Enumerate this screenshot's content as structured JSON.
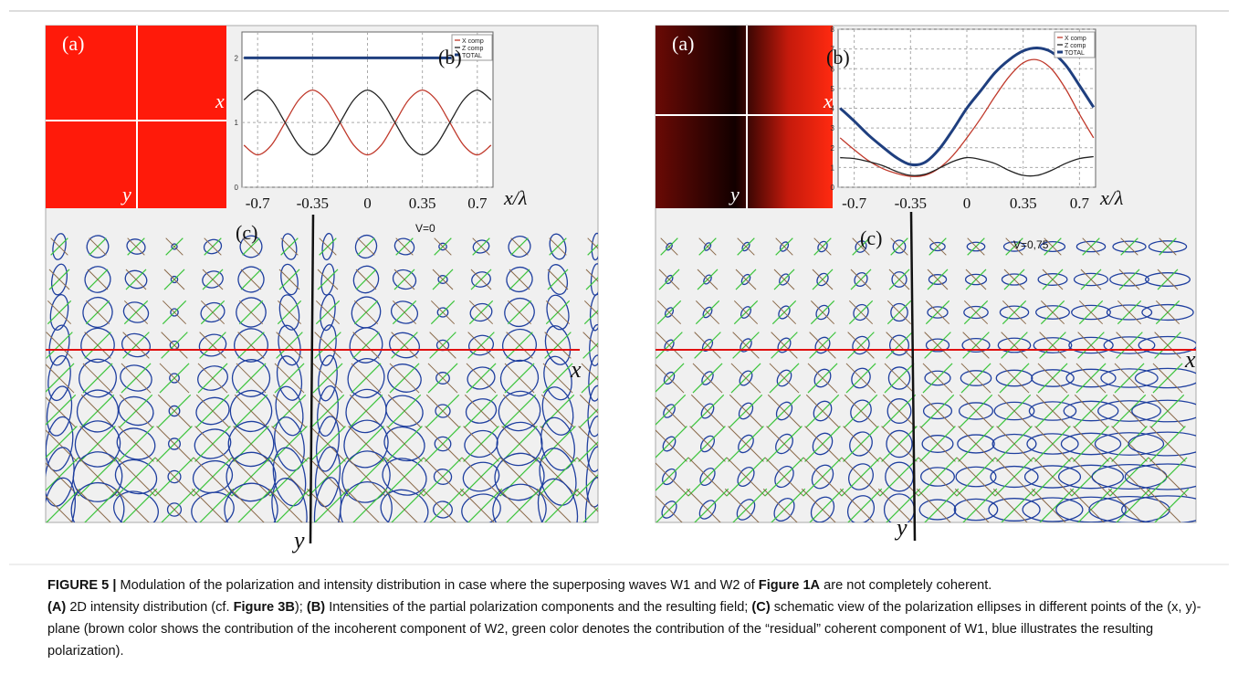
{
  "chart_data": [
    {
      "type": "line",
      "x": [
        -0.7875,
        -0.7,
        -0.6125,
        -0.525,
        -0.4375,
        -0.35,
        -0.2625,
        -0.175,
        -0.0875,
        0,
        0.0875,
        0.175,
        0.2625,
        0.35,
        0.4375,
        0.525,
        0.6125,
        0.7,
        0.7875
      ],
      "series": [
        {
          "name": "X comp",
          "color": "#c0392b",
          "values": [
            0.65,
            0.5,
            0.65,
            1,
            1.35,
            1.5,
            1.35,
            1,
            0.65,
            0.5,
            0.65,
            1,
            1.35,
            1.5,
            1.35,
            1,
            0.65,
            0.5,
            0.65
          ]
        },
        {
          "name": "Z comp",
          "color": "#222222",
          "values": [
            1.35,
            1.5,
            1.35,
            1,
            0.65,
            0.5,
            0.65,
            1,
            1.35,
            1.5,
            1.35,
            1,
            0.65,
            0.5,
            0.65,
            1,
            1.35,
            1.5,
            1.35
          ]
        },
        {
          "name": "TOTAL",
          "color": "#1f3f7f",
          "values": [
            2,
            2,
            2,
            2,
            2,
            2,
            2,
            2,
            2,
            2,
            2,
            2,
            2,
            2,
            2,
            2,
            2,
            2,
            2
          ]
        }
      ],
      "xlim": [
        -0.8,
        0.8
      ],
      "xticks": [
        -0.7,
        -0.35,
        0,
        0.35,
        0.7
      ],
      "ylim": [
        0,
        2.4
      ],
      "yticks": [
        0,
        1,
        2
      ],
      "x_label": "x/λ",
      "grid": true
    },
    {
      "type": "line",
      "x": [
        -0.7875,
        -0.7,
        -0.6125,
        -0.525,
        -0.4375,
        -0.35,
        -0.2625,
        -0.175,
        -0.0875,
        0,
        0.0875,
        0.175,
        0.2625,
        0.35,
        0.4375,
        0.525,
        0.6125,
        0.7,
        0.7875
      ],
      "series": [
        {
          "name": "X comp",
          "color": "#c0392b",
          "values": [
            2.5,
            1.9,
            1.35,
            0.95,
            0.7,
            0.55,
            0.6,
            0.95,
            1.6,
            2.5,
            3.5,
            4.6,
            5.6,
            6.3,
            6.45,
            6,
            5,
            3.7,
            2.5
          ]
        },
        {
          "name": "Z comp",
          "color": "#222222",
          "values": [
            1.5,
            1.45,
            1.3,
            1.1,
            0.8,
            0.6,
            0.65,
            0.95,
            1.3,
            1.5,
            1.4,
            1.2,
            0.85,
            0.6,
            0.6,
            0.85,
            1.2,
            1.45,
            1.55
          ]
        },
        {
          "name": "TOTAL",
          "color": "#1f3f7f",
          "values": [
            4,
            3.35,
            2.65,
            2.05,
            1.5,
            1.15,
            1.25,
            1.9,
            2.9,
            4,
            4.9,
            5.8,
            6.45,
            6.9,
            7.05,
            6.85,
            6.2,
            5.15,
            4.05
          ]
        }
      ],
      "xlim": [
        -0.8,
        0.8
      ],
      "xticks": [
        -0.7,
        -0.35,
        0,
        0.35,
        0.7
      ],
      "ylim": [
        0,
        8
      ],
      "yticks": [
        0,
        1,
        2,
        3,
        4,
        5,
        6,
        7,
        8
      ],
      "x_label": "x/λ",
      "grid": true
    }
  ],
  "panels": [
    {
      "a_label": "(a)",
      "b_label": "(b)",
      "c_label": "(c)",
      "x_label": "x",
      "y_label": "y",
      "v_label": "V=0"
    },
    {
      "a_label": "(a)",
      "b_label": "(b)",
      "c_label": "(c)",
      "x_label": "x",
      "y_label": "y",
      "v_label": "V=0,75"
    }
  ],
  "caption": {
    "parts": [
      "FIGURE 5 |",
      " Modulation of the polarization and intensity distribution in case where the superposing waves W1 and W2 of ",
      "Figure 1A",
      " are not completely coherent.",
      "(A)",
      " 2D intensity distribution (cf. ",
      "Figure 3B",
      "); ",
      "(B)",
      " Intensities of the partial polarization components and the resulting field; ",
      "(C)",
      " schematic view of the polarization ellipses in different points of the (x, y)-plane (brown color shows the contribution of the incoherent component of W2, green color denotes the contribution of the “residual” coherent component of W1, blue illustrates the resulting polarization)."
    ]
  }
}
